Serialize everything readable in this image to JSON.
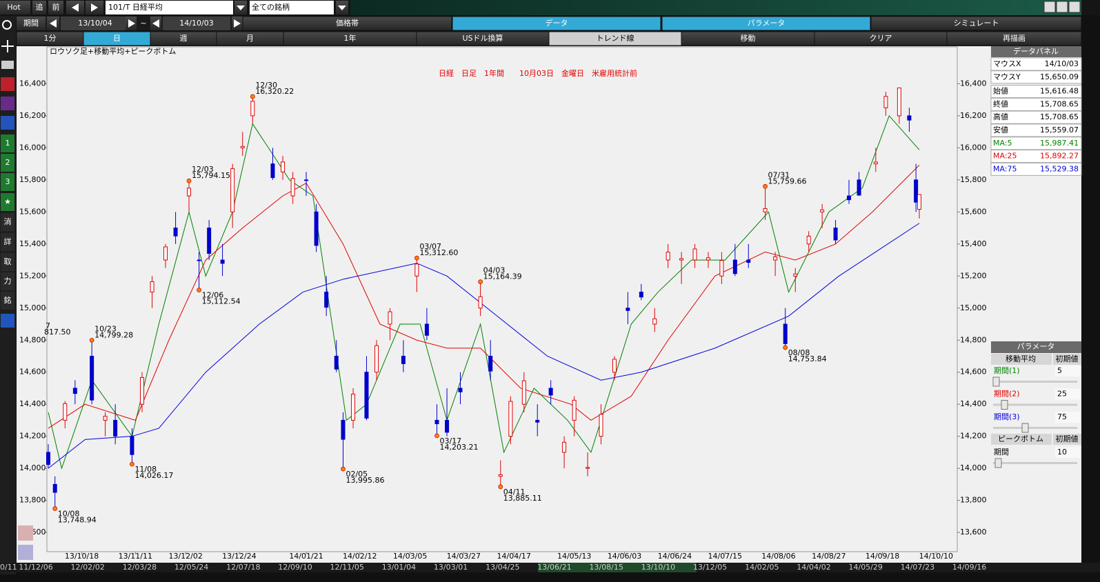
{
  "toolbar": {
    "hot": "Hot",
    "add": "追",
    "prev": "前",
    "symbol": "101/T 日経平均",
    "universe": "全ての銘柄",
    "period_label": "期間",
    "from": "13/10/04",
    "tilde": "~",
    "to": "14/10/03",
    "tabs": [
      "価格帯",
      "データ",
      "パラメータ",
      "シミュレート"
    ],
    "buttons": [
      "1分",
      "日",
      "週",
      "月",
      "1年",
      "USドル換算",
      "トレンド線",
      "移動",
      "クリア",
      "再描画"
    ]
  },
  "sidebar": [
    "1",
    "2",
    "3",
    "★",
    "消",
    "詳",
    "取",
    "力",
    "銘"
  ],
  "chart_data": {
    "type": "candlestick",
    "title": "ロウソク足+移動平均+ピークボトム",
    "subtitle": "日経　日足　1年間　　10月03日　金曜日　米雇用統計前",
    "up_color": "#e00000",
    "down_color": "#0000cc",
    "grid": false,
    "x": [
      "13/10/04",
      "13/10/08",
      "13/10/11",
      "13/10/16",
      "13/10/23",
      "13/10/29",
      "13/11/01",
      "13/11/08",
      "13/11/13",
      "13/11/18",
      "13/11/22",
      "13/11/27",
      "13/12/03",
      "13/12/06",
      "13/12/11",
      "13/12/17",
      "13/12/20",
      "13/12/25",
      "13/12/30",
      "14/01/07",
      "14/01/10",
      "14/01/15",
      "14/01/21",
      "14/01/24",
      "14/01/29",
      "14/02/03",
      "14/02/05",
      "14/02/10",
      "14/02/14",
      "14/02/19",
      "14/02/25",
      "14/03/03",
      "14/03/07",
      "14/03/12",
      "14/03/17",
      "14/03/20",
      "14/03/26",
      "14/04/03",
      "14/04/08",
      "14/04/11",
      "14/04/16",
      "14/04/22",
      "14/04/28",
      "14/05/02",
      "14/05/08",
      "14/05/13",
      "14/05/19",
      "14/05/23",
      "14/05/29",
      "14/06/04",
      "14/06/10",
      "14/06/16",
      "14/06/20",
      "14/06/26",
      "14/07/02",
      "14/07/08",
      "14/07/14",
      "14/07/18",
      "14/07/24",
      "14/07/31",
      "14/08/05",
      "14/08/08",
      "14/08/13",
      "14/08/19",
      "14/08/25",
      "14/08/29",
      "14/09/04",
      "14/09/09",
      "14/09/16",
      "14/09/19",
      "14/09/25",
      "14/09/30",
      "14/10/02",
      "14/10/03"
    ],
    "open": [
      14100,
      13900,
      14300,
      14500,
      14700,
      14300,
      14300,
      14200,
      14400,
      15100,
      15300,
      15500,
      15700,
      15300,
      15500,
      15300,
      15600,
      16000,
      16200,
      15900,
      15850,
      15700,
      15800,
      15600,
      15100,
      14700,
      14300,
      14300,
      14600,
      14600,
      14900,
      14700,
      15200,
      14900,
      14300,
      14300,
      14500,
      15000,
      14700,
      13950,
      14200,
      14400,
      14300,
      14500,
      14100,
      14300,
      14000,
      14200,
      14600,
      15000,
      15100,
      14900,
      15300,
      15300,
      15300,
      15300,
      15200,
      15300,
      15300,
      15600,
      15300,
      14900,
      15200,
      15400,
      15600,
      15500,
      15700,
      15800,
      15900,
      16250,
      16200,
      16200,
      15800,
      15616.48
    ],
    "high": [
      14150,
      13950,
      14420,
      14550,
      14799.28,
      14350,
      14400,
      14250,
      14600,
      15200,
      15400,
      15600,
      15794.15,
      15350,
      15550,
      15400,
      15900,
      16100,
      16320.22,
      16000,
      15950,
      15850,
      15850,
      15650,
      15200,
      14800,
      14350,
      14500,
      14700,
      14800,
      15000,
      14800,
      15312.6,
      15000,
      14400,
      14500,
      14600,
      15164.39,
      14800,
      14050,
      14450,
      14600,
      14400,
      14550,
      14200,
      14450,
      14100,
      14400,
      14700,
      15100,
      15150,
      15000,
      15400,
      15350,
      15400,
      15350,
      15350,
      15400,
      15400,
      15759.66,
      15350,
      15000,
      15250,
      15480,
      15650,
      15550,
      15800,
      15850,
      16000,
      16350,
      16374,
      16250,
      15900,
      15708.65
    ],
    "low": [
      14000,
      13748.94,
      14250,
      14400,
      14400,
      14200,
      14150,
      14026.17,
      14350,
      15000,
      15250,
      15400,
      15600,
      15112.54,
      15300,
      15200,
      15500,
      15950,
      16150,
      15800,
      15800,
      15650,
      15700,
      15350,
      14950,
      14600,
      13995.86,
      14250,
      14300,
      14550,
      14800,
      14600,
      15100,
      14800,
      14203.21,
      14200,
      14400,
      14950,
      14550,
      13885.11,
      14150,
      14350,
      14200,
      14400,
      14000,
      14200,
      13950,
      14150,
      14550,
      14900,
      15050,
      14850,
      15250,
      15150,
      15250,
      15250,
      15150,
      15200,
      15250,
      15550,
      15200,
      14753.84,
      15100,
      15350,
      15500,
      15400,
      15650,
      15700,
      15850,
      16200,
      16150,
      16100,
      15600,
      15559.07
    ],
    "close": [
      14024,
      13850,
      14404,
      14467,
      14426,
      14325,
      14201,
      14086,
      14567,
      15165,
      15382,
      15450,
      15749,
      15299,
      15341,
      15279,
      15870,
      16009,
      16291,
      15814,
      15912,
      15809,
      15796,
      15391,
      15005,
      14619,
      14181,
      14463,
      14313,
      14766,
      14977,
      14653,
      15275,
      14830,
      14278,
      14225,
      14477,
      15071,
      14607,
      13960,
      14418,
      14546,
      14288,
      14457,
      14163,
      14425,
      14006,
      14337,
      14681,
      14985,
      15069,
      14933,
      15349,
      15309,
      15369,
      15314,
      15297,
      15215,
      15285,
      15621,
      15320,
      14778,
      15213,
      15449,
      15613,
      15425,
      15676,
      15705,
      15911,
      16321,
      16374,
      16173,
      15661,
      15708.65
    ],
    "ma_lines": [
      {
        "color": "#008000",
        "x": [
          "13/10/04",
          "13/10/10",
          "13/10/23",
          "13/11/08",
          "13/11/20",
          "13/12/03",
          "13/12/10",
          "13/12/20",
          "13/12/30",
          "14/01/14",
          "14/01/23",
          "14/02/06",
          "14/02/14",
          "14/02/28",
          "14/03/10",
          "14/03/20",
          "14/04/03",
          "14/04/14",
          "14/04/25",
          "14/05/09",
          "14/05/20",
          "14/06/05",
          "14/06/17",
          "14/07/01",
          "14/07/15",
          "14/08/01",
          "14/08/11",
          "14/08/27",
          "14/09/10",
          "14/09/22",
          "14/10/03"
        ],
        "values": [
          14350,
          14000,
          14550,
          14200,
          14900,
          15600,
          15200,
          15600,
          16150,
          15800,
          15700,
          14300,
          14400,
          14900,
          14900,
          14300,
          14900,
          14100,
          14500,
          14300,
          14100,
          14900,
          15100,
          15300,
          15300,
          15600,
          15100,
          15600,
          15750,
          16200,
          15987.41
        ]
      },
      {
        "color": "#e00000",
        "x": [
          "13/10/04",
          "13/10/20",
          "13/11/10",
          "13/11/25",
          "13/12/10",
          "13/12/25",
          "14/01/10",
          "14/01/21",
          "14/02/05",
          "14/02/20",
          "14/03/07",
          "14/03/20",
          "14/04/03",
          "14/04/20",
          "14/05/10",
          "14/05/20",
          "14/06/05",
          "14/06/20",
          "14/07/10",
          "14/07/31",
          "14/08/13",
          "14/08/29",
          "14/09/15",
          "14/10/03"
        ],
        "values": [
          14250,
          14400,
          14300,
          14800,
          15300,
          15500,
          15700,
          15780,
          15400,
          14900,
          14800,
          14750,
          14750,
          14500,
          14400,
          14300,
          14450,
          14800,
          15200,
          15350,
          15300,
          15400,
          15600,
          15892.27
        ]
      },
      {
        "color": "#0000e0",
        "x": [
          "13/10/04",
          "13/10/21",
          "13/11/08",
          "13/11/20",
          "13/12/10",
          "14/01/01",
          "14/01/20",
          "14/02/05",
          "14/03/07",
          "14/03/20",
          "14/04/10",
          "14/05/01",
          "14/05/23",
          "14/06/10",
          "14/07/10",
          "14/08/10",
          "14/09/01",
          "14/10/03"
        ],
        "values": [
          14000,
          14180,
          14200,
          14250,
          14600,
          14900,
          15100,
          15180,
          15280,
          15200,
          14950,
          14700,
          14550,
          14600,
          14750,
          14950,
          15200,
          15529.38
        ]
      }
    ],
    "annotations": [
      {
        "date": "10/08",
        "value": 13748.94,
        "label": "13,748.94"
      },
      {
        "date": "10/23",
        "value": 14799.28,
        "label": "14,799.28"
      },
      {
        "date": "11/08",
        "value": 14026.17,
        "label": "14,026.17"
      },
      {
        "date": "12/03",
        "value": 15794.15,
        "label": "15,794.15"
      },
      {
        "date": "12/06",
        "value": 15112.54,
        "label": "15,112.54"
      },
      {
        "date": "12/30",
        "value": 16320.22,
        "label": "16,320.22"
      },
      {
        "date": "02/05",
        "value": 13995.86,
        "label": "13,995.86"
      },
      {
        "date": "03/07",
        "value": 15312.6,
        "label": "15,312.60"
      },
      {
        "date": "03/17",
        "value": 14203.21,
        "label": "14,203.21"
      },
      {
        "date": "04/03",
        "value": 15164.39,
        "label": "15,164.39"
      },
      {
        "date": "04/11",
        "value": 13885.11,
        "label": "13,885.11"
      },
      {
        "date": "07/31",
        "value": 15759.66,
        "label": "15,759.66"
      },
      {
        "date": "08/08",
        "value": 14753.84,
        "label": "14,753.84"
      }
    ],
    "clipped_annotation": [
      "7",
      "817.50"
    ],
    "ylim": [
      13480,
      16630
    ],
    "yticks": [
      {
        "value": 13600,
        "label": "13,600"
      },
      {
        "value": 13800,
        "label": "13,800"
      },
      {
        "value": 14000,
        "label": "14,000"
      },
      {
        "value": 14200,
        "label": "14,200"
      },
      {
        "value": 14400,
        "label": "14,400"
      },
      {
        "value": 14600,
        "label": "14,600"
      },
      {
        "value": 14800,
        "label": "14,800"
      },
      {
        "value": 15000,
        "label": "15,000"
      },
      {
        "value": 15200,
        "label": "15,200"
      },
      {
        "value": 15400,
        "label": "15,400"
      },
      {
        "value": 15600,
        "label": "15,600"
      },
      {
        "value": 15800,
        "label": "15,800"
      },
      {
        "value": 16000,
        "label": "16,000"
      },
      {
        "value": 16200,
        "label": "16,200"
      },
      {
        "value": 16400,
        "label": "16,400"
      }
    ],
    "xticks": [
      "13/10/18",
      "13/11/11",
      "13/12/02",
      "13/12/24",
      "14/01/21",
      "14/02/12",
      "14/03/05",
      "14/03/27",
      "14/04/17",
      "14/05/13",
      "14/06/03",
      "14/06/24",
      "14/07/15",
      "14/08/06",
      "14/08/27",
      "14/09/18",
      "14/10/10"
    ]
  },
  "data_panel": {
    "title": "データパネル",
    "rows": [
      {
        "label": "マウスX",
        "value": "14/10/03"
      },
      {
        "label": "マウスY",
        "value": "15,650.09"
      },
      {
        "label": "始値",
        "value": "15,616.48"
      },
      {
        "label": "終値",
        "value": "15,708.65"
      },
      {
        "label": "高値",
        "value": "15,708.65"
      },
      {
        "label": "安値",
        "value": "15,559.07"
      },
      {
        "label": "MA:5",
        "value": "15,987.41",
        "color": "#008000"
      },
      {
        "label": "MA:25",
        "value": "15,892.27",
        "color": "#e00000"
      },
      {
        "label": "MA:75",
        "value": "15,529.38",
        "color": "#0000e0"
      }
    ]
  },
  "parameter_panel": {
    "title": "パラメータ",
    "ma_header": "移動平均",
    "default": "初期値",
    "periods": [
      {
        "label": "期間(1)",
        "value": 5,
        "color": "#008000"
      },
      {
        "label": "期間(2)",
        "value": 25,
        "color": "#e00000"
      },
      {
        "label": "期間(3)",
        "value": 75,
        "color": "#0000e0"
      }
    ],
    "peak_header": "ピークボトム",
    "peak_default": "初期値",
    "peak_period": {
      "label": "期間",
      "value": 10
    }
  },
  "overview_dates": [
    "0/11",
    "11/12/06",
    "12/02/02",
    "12/03/28",
    "12/05/24",
    "12/07/18",
    "12/09/10",
    "12/11/05",
    "13/01/04",
    "13/03/01",
    "13/04/25",
    "13/06/21",
    "13/08/15",
    "13/10/10",
    "13/12/05",
    "14/02/05",
    "14/04/02",
    "14/05/29",
    "14/07/23",
    "14/09/16"
  ]
}
